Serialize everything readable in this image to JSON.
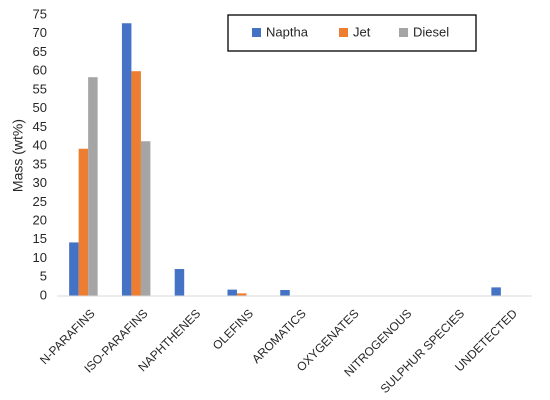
{
  "chart_data": {
    "type": "bar",
    "title": "",
    "xlabel": "",
    "ylabel": "Mass (wt%)",
    "ylim": [
      0,
      75
    ],
    "yticks": [
      0,
      5,
      10,
      15,
      20,
      25,
      30,
      35,
      40,
      45,
      50,
      55,
      60,
      65,
      70,
      75
    ],
    "grid": false,
    "legend": "top-right",
    "categories": [
      "N-PARAFINS",
      "ISO-PARAFINS",
      "NAPHTHENES",
      "OLEFINS",
      "AROMATICS",
      "OXYGENATES",
      "NITROGENOUS",
      "SULPHUR SPECIES",
      "UNDETECTED"
    ],
    "series": [
      {
        "name": "Naptha",
        "color": "#4472C4",
        "values": [
          14.3,
          72.8,
          7.2,
          1.7,
          1.6,
          0,
          0,
          0,
          2.3
        ]
      },
      {
        "name": "Jet",
        "color": "#ED7D31",
        "values": [
          39.3,
          60.0,
          0,
          0.7,
          0,
          0,
          0,
          0,
          0
        ]
      },
      {
        "name": "Diesel",
        "color": "#A5A5A5",
        "values": [
          58.4,
          41.3,
          0,
          0,
          0,
          0,
          0,
          0,
          0
        ]
      }
    ]
  }
}
